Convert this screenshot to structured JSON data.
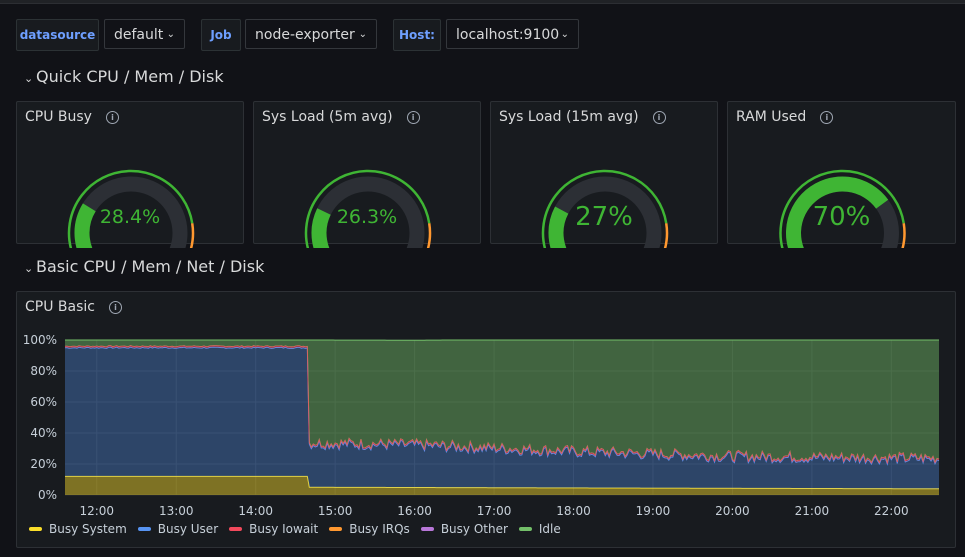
{
  "variables": [
    {
      "label": "datasource",
      "value": "default"
    },
    {
      "label": "Job",
      "value": "node-exporter"
    },
    {
      "label": "Host:",
      "value": "localhost:9100"
    }
  ],
  "rows": [
    {
      "title": "Quick CPU / Mem / Disk"
    },
    {
      "title": "Basic CPU / Mem / Net / Disk"
    }
  ],
  "gauges": [
    {
      "title": "CPU Busy",
      "value": "28.4%",
      "level": 0.284
    },
    {
      "title": "Sys Load (5m avg)",
      "value": "26.3%",
      "level": 0.263
    },
    {
      "title": "Sys Load (15m avg)",
      "value": "27%",
      "level": 0.27
    },
    {
      "title": "RAM Used",
      "value": "70%",
      "level": 0.7
    }
  ],
  "colors": {
    "accent": "#6e9fff",
    "gauge_green": "#3fb534",
    "threshold_red": "#e02f44",
    "track": "#2c2f35"
  },
  "chart_data": {
    "type": "area",
    "title": "CPU Basic",
    "yticks": [
      "100%",
      "80%",
      "60%",
      "40%",
      "20%",
      "0%"
    ],
    "ylim": [
      0,
      100
    ],
    "xticks": [
      "12:00",
      "13:00",
      "14:00",
      "15:00",
      "16:00",
      "17:00",
      "18:00",
      "19:00",
      "20:00",
      "21:00",
      "22:00"
    ],
    "xlim_hours": [
      11.6,
      22.6
    ],
    "stacked": true,
    "series": [
      {
        "name": "Busy System",
        "color": "#fade2a",
        "points": [
          [
            11.6,
            12
          ],
          [
            14.65,
            12
          ],
          [
            14.67,
            5
          ],
          [
            22.6,
            4
          ]
        ]
      },
      {
        "name": "Busy User",
        "color": "#5794f2",
        "points": [
          [
            11.6,
            83
          ],
          [
            14.65,
            83
          ],
          [
            14.67,
            28
          ],
          [
            16,
            27
          ],
          [
            18,
            23
          ],
          [
            20,
            20
          ],
          [
            22.6,
            19
          ]
        ]
      },
      {
        "name": "Busy Iowait",
        "color": "#f2495c",
        "points": [
          [
            11.6,
            1
          ],
          [
            22.6,
            1
          ]
        ]
      },
      {
        "name": "Busy IRQs",
        "color": "#ff9830",
        "points": [
          [
            11.6,
            0
          ],
          [
            22.6,
            0
          ]
        ]
      },
      {
        "name": "Busy Other",
        "color": "#b877d9",
        "points": [
          [
            11.6,
            0
          ],
          [
            22.6,
            0
          ]
        ]
      },
      {
        "name": "Idle",
        "color": "#73bf69",
        "points": [
          [
            11.6,
            4
          ],
          [
            14.65,
            4
          ],
          [
            14.67,
            66
          ],
          [
            16,
            67
          ],
          [
            18,
            72
          ],
          [
            20,
            75
          ],
          [
            22.6,
            76
          ]
        ]
      }
    ]
  }
}
